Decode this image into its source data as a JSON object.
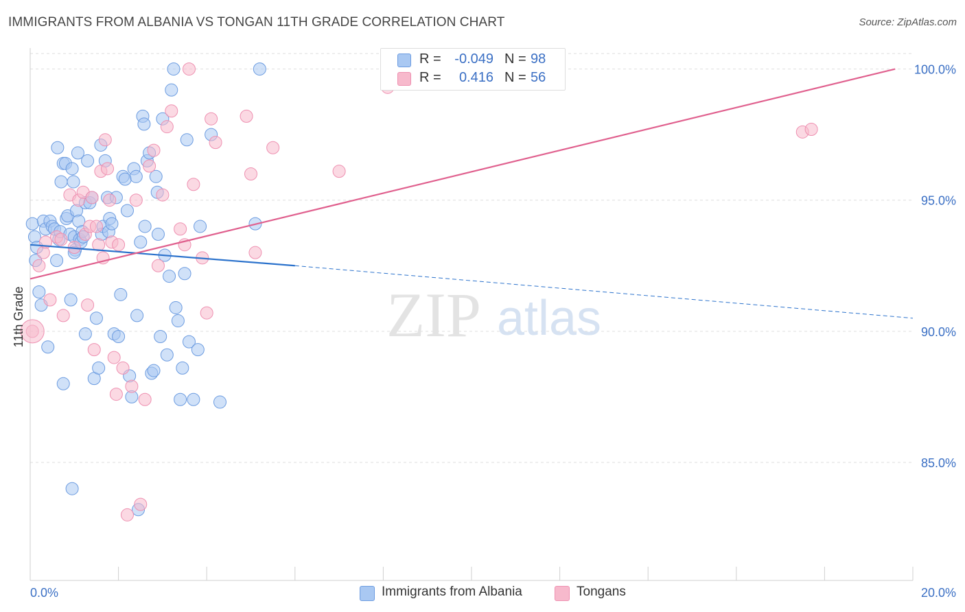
{
  "title": "IMMIGRANTS FROM ALBANIA VS TONGAN 11TH GRADE CORRELATION CHART",
  "source": "Source: ZipAtlas.com",
  "watermark": {
    "zip": "ZIP",
    "atlas": "atlas"
  },
  "legend_top": [
    {
      "r_label": "R =",
      "r_value": "-0.049",
      "n_label": "N =",
      "n_value": "98",
      "color": "#a9c8f2"
    },
    {
      "r_label": "R =",
      "r_value": "0.416",
      "n_label": "N =",
      "n_value": "56",
      "color": "#f7b9cc"
    }
  ],
  "legend_bottom": [
    {
      "label": "Immigrants from Albania",
      "color": "#a9c8f2"
    },
    {
      "label": "Tongans",
      "color": "#f7b9cc"
    }
  ],
  "chart_data": {
    "type": "scatter",
    "title": "IMMIGRANTS FROM ALBANIA VS TONGAN 11TH GRADE CORRELATION CHART",
    "xlabel": "",
    "ylabel": "11th Grade",
    "xlim": [
      0,
      20
    ],
    "ylim": [
      80.5,
      100.8
    ],
    "x_tick_labels": [
      {
        "value": 0,
        "label": "0.0%"
      },
      {
        "value": 20,
        "label": "20.0%"
      }
    ],
    "y_tick_labels": [
      {
        "value": 85,
        "label": "85.0%"
      },
      {
        "value": 90,
        "label": "90.0%"
      },
      {
        "value": 95,
        "label": "95.0%"
      },
      {
        "value": 100,
        "label": "100.0%"
      }
    ],
    "grid": true,
    "legend_position": "top-center",
    "series": [
      {
        "name": "Immigrants from Albania",
        "color": "#6b9be0",
        "fill": "#a9c8f2",
        "trend": {
          "x0": 0,
          "y0": 93.3,
          "x1": 6.0,
          "y1": 92.5,
          "dash_to_x": 20,
          "dash_to_y": 90.5,
          "color": "#2b72cc"
        },
        "points": [
          [
            0.05,
            94.1
          ],
          [
            0.1,
            93.6
          ],
          [
            0.12,
            92.7
          ],
          [
            0.15,
            93.2
          ],
          [
            0.2,
            91.5
          ],
          [
            0.25,
            91.0
          ],
          [
            0.3,
            94.2
          ],
          [
            0.35,
            93.9
          ],
          [
            0.4,
            89.4
          ],
          [
            0.45,
            94.2
          ],
          [
            0.5,
            94.0
          ],
          [
            0.55,
            93.9
          ],
          [
            0.6,
            92.7
          ],
          [
            0.62,
            97.0
          ],
          [
            0.65,
            93.5
          ],
          [
            0.68,
            93.8
          ],
          [
            0.7,
            95.7
          ],
          [
            0.75,
            96.4
          ],
          [
            0.8,
            96.4
          ],
          [
            0.82,
            94.3
          ],
          [
            0.85,
            94.4
          ],
          [
            0.9,
            93.7
          ],
          [
            0.92,
            91.2
          ],
          [
            0.95,
            96.2
          ],
          [
            0.98,
            95.7
          ],
          [
            1.0,
            93.6
          ],
          [
            1.02,
            93.1
          ],
          [
            1.05,
            94.6
          ],
          [
            1.08,
            96.8
          ],
          [
            1.1,
            94.2
          ],
          [
            1.12,
            93.5
          ],
          [
            1.15,
            93.4
          ],
          [
            1.18,
            93.8
          ],
          [
            1.2,
            93.6
          ],
          [
            1.25,
            94.9
          ],
          [
            1.3,
            96.5
          ],
          [
            1.35,
            94.9
          ],
          [
            1.4,
            95.1
          ],
          [
            1.45,
            88.2
          ],
          [
            1.5,
            90.5
          ],
          [
            1.55,
            88.6
          ],
          [
            1.6,
            97.1
          ],
          [
            1.62,
            93.7
          ],
          [
            1.65,
            94.0
          ],
          [
            1.7,
            96.5
          ],
          [
            1.75,
            95.1
          ],
          [
            1.78,
            93.8
          ],
          [
            1.8,
            94.3
          ],
          [
            1.85,
            94.1
          ],
          [
            1.9,
            89.9
          ],
          [
            1.95,
            95.1
          ],
          [
            2.0,
            89.8
          ],
          [
            2.05,
            91.4
          ],
          [
            2.1,
            95.9
          ],
          [
            2.15,
            95.8
          ],
          [
            2.2,
            94.6
          ],
          [
            2.25,
            88.3
          ],
          [
            2.3,
            87.5
          ],
          [
            2.35,
            96.2
          ],
          [
            2.4,
            95.9
          ],
          [
            2.42,
            90.6
          ],
          [
            2.45,
            83.2
          ],
          [
            2.5,
            93.4
          ],
          [
            2.55,
            98.2
          ],
          [
            2.58,
            97.9
          ],
          [
            2.6,
            94.0
          ],
          [
            2.65,
            96.5
          ],
          [
            2.7,
            96.8
          ],
          [
            2.75,
            88.4
          ],
          [
            2.8,
            88.5
          ],
          [
            2.85,
            95.9
          ],
          [
            2.88,
            95.3
          ],
          [
            2.9,
            93.7
          ],
          [
            2.95,
            89.8
          ],
          [
            3.0,
            98.1
          ],
          [
            3.05,
            92.9
          ],
          [
            3.1,
            89.1
          ],
          [
            3.15,
            92.1
          ],
          [
            3.2,
            99.2
          ],
          [
            3.25,
            100.0
          ],
          [
            3.3,
            90.9
          ],
          [
            3.35,
            90.4
          ],
          [
            3.4,
            87.4
          ],
          [
            3.45,
            88.6
          ],
          [
            3.5,
            92.2
          ],
          [
            3.55,
            97.3
          ],
          [
            3.6,
            89.6
          ],
          [
            3.7,
            87.4
          ],
          [
            3.8,
            89.3
          ],
          [
            3.85,
            94.0
          ],
          [
            4.1,
            97.5
          ],
          [
            4.3,
            87.3
          ],
          [
            5.1,
            94.1
          ],
          [
            5.2,
            100.0
          ],
          [
            0.95,
            84.0
          ],
          [
            1.25,
            89.9
          ],
          [
            0.75,
            88.0
          ],
          [
            1.0,
            93.0
          ]
        ]
      },
      {
        "name": "Tongans",
        "color": "#ee8fb0",
        "fill": "#f7b9cc",
        "trend": {
          "x0": 0,
          "y0": 92.0,
          "x1": 19.6,
          "y1": 100.0,
          "color": "#e0608e"
        },
        "points": [
          [
            0.05,
            90.0
          ],
          [
            0.2,
            92.5
          ],
          [
            0.3,
            93.0
          ],
          [
            0.45,
            91.2
          ],
          [
            0.6,
            93.6
          ],
          [
            0.7,
            93.5
          ],
          [
            0.75,
            90.6
          ],
          [
            0.9,
            95.2
          ],
          [
            1.0,
            93.2
          ],
          [
            1.1,
            95.0
          ],
          [
            1.2,
            95.3
          ],
          [
            1.25,
            93.7
          ],
          [
            1.3,
            91.0
          ],
          [
            1.35,
            94.0
          ],
          [
            1.4,
            95.1
          ],
          [
            1.45,
            89.3
          ],
          [
            1.5,
            94.0
          ],
          [
            1.55,
            93.3
          ],
          [
            1.6,
            96.1
          ],
          [
            1.65,
            92.8
          ],
          [
            1.7,
            97.3
          ],
          [
            1.75,
            96.2
          ],
          [
            1.8,
            95.0
          ],
          [
            1.85,
            93.4
          ],
          [
            1.9,
            89.0
          ],
          [
            1.95,
            87.6
          ],
          [
            2.0,
            93.3
          ],
          [
            2.1,
            88.6
          ],
          [
            2.2,
            83.0
          ],
          [
            2.3,
            87.9
          ],
          [
            2.4,
            95.0
          ],
          [
            2.5,
            83.4
          ],
          [
            2.6,
            87.4
          ],
          [
            2.7,
            96.3
          ],
          [
            2.8,
            96.9
          ],
          [
            2.9,
            92.5
          ],
          [
            3.0,
            95.2
          ],
          [
            3.1,
            97.8
          ],
          [
            3.2,
            98.4
          ],
          [
            3.4,
            93.9
          ],
          [
            3.5,
            93.3
          ],
          [
            3.6,
            100.0
          ],
          [
            3.7,
            95.6
          ],
          [
            3.9,
            92.8
          ],
          [
            4.0,
            90.7
          ],
          [
            4.1,
            98.1
          ],
          [
            4.2,
            97.2
          ],
          [
            4.9,
            98.2
          ],
          [
            5.0,
            96.0
          ],
          [
            5.1,
            93.0
          ],
          [
            5.5,
            97.0
          ],
          [
            7.0,
            96.1
          ],
          [
            8.1,
            99.3
          ],
          [
            17.5,
            97.6
          ],
          [
            17.7,
            97.7
          ],
          [
            0.35,
            93.4
          ]
        ]
      }
    ]
  }
}
